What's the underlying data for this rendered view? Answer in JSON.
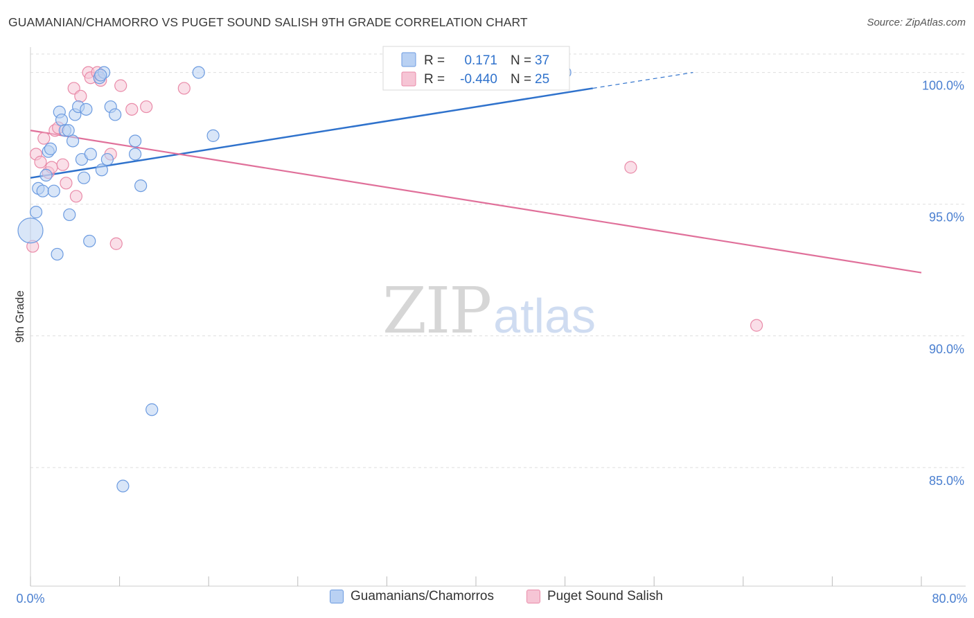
{
  "title": "GUAMANIAN/CHAMORRO VS PUGET SOUND SALISH 9TH GRADE CORRELATION CHART",
  "source": "Source: ZipAtlas.com",
  "watermark": {
    "zip": "ZIP",
    "atlas": "atlas"
  },
  "colors": {
    "blue": "#6c9be0",
    "blue_fill": "#b9d1f3",
    "blue_line": "#2f72cc",
    "pink": "#e98aa8",
    "pink_fill": "#f6c5d5",
    "pink_line": "#e0709a",
    "grid": "#dddddd",
    "tick_label": "#4a7fd0"
  },
  "legend": {
    "rows": [
      {
        "r_label": "R =",
        "r_value": "0.171",
        "n_label": "N =",
        "n_value": "37"
      },
      {
        "r_label": "R =",
        "r_value": "-0.440",
        "n_label": "N =",
        "n_value": "25"
      }
    ]
  },
  "bottom_legend": [
    {
      "label": "Guamanians/Chamorros"
    },
    {
      "label": "Puget Sound Salish"
    }
  ],
  "chart_data": {
    "type": "scatter",
    "title": "GUAMANIAN/CHAMORRO VS PUGET SOUND SALISH 9TH GRADE CORRELATION CHART",
    "xlabel": "",
    "ylabel": "9th Grade",
    "xlim": [
      0,
      80
    ],
    "ylim": [
      80.5,
      100.7
    ],
    "x_tick_labels": [
      "0.0%",
      "80.0%"
    ],
    "y_ticks": [
      85,
      90,
      95,
      100
    ],
    "y_tick_labels": [
      "85.0%",
      "90.0%",
      "95.0%",
      "100.0%"
    ],
    "grid": true,
    "series": [
      {
        "name": "Guamanians/Chamorros",
        "r": 0.171,
        "n": 37,
        "trend": {
          "x0": 0,
          "y0": 96.0,
          "x1": 50.5,
          "y1": 99.4,
          "dash_x1": 59.5,
          "dash_y1": 100.0
        },
        "points": [
          {
            "x": 0.0,
            "y": 94.0,
            "s": 3
          },
          {
            "x": 0.5,
            "y": 94.7,
            "s": 1
          },
          {
            "x": 0.7,
            "y": 95.6,
            "s": 1
          },
          {
            "x": 1.1,
            "y": 95.5,
            "s": 1
          },
          {
            "x": 1.4,
            "y": 96.1,
            "s": 1
          },
          {
            "x": 1.6,
            "y": 97.0,
            "s": 1
          },
          {
            "x": 1.8,
            "y": 97.1,
            "s": 1
          },
          {
            "x": 2.1,
            "y": 95.5,
            "s": 1
          },
          {
            "x": 2.4,
            "y": 93.1,
            "s": 1
          },
          {
            "x": 2.6,
            "y": 98.5,
            "s": 1
          },
          {
            "x": 2.8,
            "y": 98.2,
            "s": 1
          },
          {
            "x": 3.1,
            "y": 97.8,
            "s": 1
          },
          {
            "x": 3.4,
            "y": 97.8,
            "s": 1
          },
          {
            "x": 3.5,
            "y": 94.6,
            "s": 1
          },
          {
            "x": 3.8,
            "y": 97.4,
            "s": 1
          },
          {
            "x": 4.0,
            "y": 98.4,
            "s": 1
          },
          {
            "x": 4.3,
            "y": 98.7,
            "s": 1
          },
          {
            "x": 4.6,
            "y": 96.7,
            "s": 1
          },
          {
            "x": 4.8,
            "y": 96.0,
            "s": 1
          },
          {
            "x": 5.0,
            "y": 98.6,
            "s": 1
          },
          {
            "x": 5.3,
            "y": 93.6,
            "s": 1
          },
          {
            "x": 5.4,
            "y": 96.9,
            "s": 1
          },
          {
            "x": 6.2,
            "y": 99.8,
            "s": 1
          },
          {
            "x": 6.4,
            "y": 96.3,
            "s": 1
          },
          {
            "x": 6.6,
            "y": 100.0,
            "s": 1
          },
          {
            "x": 6.9,
            "y": 96.7,
            "s": 1
          },
          {
            "x": 7.2,
            "y": 98.7,
            "s": 1
          },
          {
            "x": 7.6,
            "y": 98.4,
            "s": 1
          },
          {
            "x": 9.4,
            "y": 97.4,
            "s": 1
          },
          {
            "x": 9.4,
            "y": 96.9,
            "s": 1
          },
          {
            "x": 9.9,
            "y": 95.7,
            "s": 1
          },
          {
            "x": 10.9,
            "y": 87.2,
            "s": 1
          },
          {
            "x": 8.3,
            "y": 84.3,
            "s": 1
          },
          {
            "x": 15.1,
            "y": 100.0,
            "s": 1
          },
          {
            "x": 16.4,
            "y": 97.6,
            "s": 1
          },
          {
            "x": 48.0,
            "y": 100.0,
            "s": 1
          },
          {
            "x": 6.3,
            "y": 99.9,
            "s": 1
          }
        ]
      },
      {
        "name": "Puget Sound Salish",
        "r": -0.44,
        "n": 25,
        "trend": {
          "x0": 0,
          "y0": 97.8,
          "x1": 80,
          "y1": 92.4
        },
        "points": [
          {
            "x": 0.2,
            "y": 93.4,
            "s": 1
          },
          {
            "x": 0.5,
            "y": 96.9,
            "s": 1
          },
          {
            "x": 0.9,
            "y": 96.6,
            "s": 1
          },
          {
            "x": 1.2,
            "y": 97.5,
            "s": 1
          },
          {
            "x": 1.6,
            "y": 96.2,
            "s": 1
          },
          {
            "x": 1.9,
            "y": 96.4,
            "s": 1
          },
          {
            "x": 2.2,
            "y": 97.8,
            "s": 1
          },
          {
            "x": 2.5,
            "y": 97.9,
            "s": 1
          },
          {
            "x": 2.9,
            "y": 96.5,
            "s": 1
          },
          {
            "x": 3.2,
            "y": 95.8,
            "s": 1
          },
          {
            "x": 4.1,
            "y": 95.3,
            "s": 1
          },
          {
            "x": 3.9,
            "y": 99.4,
            "s": 1
          },
          {
            "x": 4.5,
            "y": 99.1,
            "s": 1
          },
          {
            "x": 5.2,
            "y": 100.0,
            "s": 1
          },
          {
            "x": 5.4,
            "y": 99.8,
            "s": 1
          },
          {
            "x": 6.0,
            "y": 100.0,
            "s": 1
          },
          {
            "x": 6.3,
            "y": 99.7,
            "s": 1
          },
          {
            "x": 7.2,
            "y": 96.9,
            "s": 1
          },
          {
            "x": 7.7,
            "y": 93.5,
            "s": 1
          },
          {
            "x": 8.1,
            "y": 99.5,
            "s": 1
          },
          {
            "x": 9.1,
            "y": 98.6,
            "s": 1
          },
          {
            "x": 10.4,
            "y": 98.7,
            "s": 1
          },
          {
            "x": 13.8,
            "y": 99.4,
            "s": 1
          },
          {
            "x": 53.9,
            "y": 96.4,
            "s": 1
          },
          {
            "x": 65.2,
            "y": 90.4,
            "s": 1
          }
        ]
      }
    ]
  }
}
